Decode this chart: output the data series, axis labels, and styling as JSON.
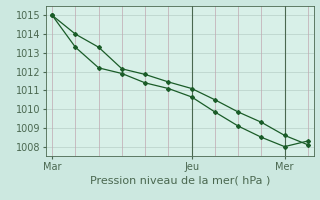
{
  "title": "Pression niveau de la mer( hPa )",
  "bg_color": "#cce8e0",
  "plot_bg_color": "#d8f0e8",
  "grid_color_v": "#c0a8b0",
  "grid_color_h": "#b8d0c8",
  "line_color": "#1a5c28",
  "x_ticks_labels": [
    "Mar",
    "Jeu",
    "Mer"
  ],
  "x_ticks_pos": [
    0,
    12,
    20
  ],
  "ylim": [
    1007.5,
    1015.5
  ],
  "yticks": [
    1008,
    1009,
    1010,
    1011,
    1012,
    1013,
    1014,
    1015
  ],
  "series1_x": [
    0,
    2,
    4,
    6,
    8,
    10,
    12,
    14,
    16,
    18,
    20,
    22
  ],
  "series1_y": [
    1015.0,
    1013.3,
    1012.2,
    1011.9,
    1011.4,
    1011.1,
    1010.65,
    1009.85,
    1009.1,
    1008.5,
    1008.0,
    1008.3
  ],
  "series2_x": [
    0,
    2,
    4,
    6,
    8,
    10,
    12,
    14,
    16,
    18,
    20,
    22
  ],
  "series2_y": [
    1015.0,
    1014.0,
    1013.3,
    1012.15,
    1011.85,
    1011.45,
    1011.1,
    1010.5,
    1009.85,
    1009.3,
    1008.6,
    1008.1
  ],
  "vline_x": [
    12,
    20
  ],
  "xlim": [
    -0.5,
    22.5
  ],
  "xlabel_fontsize": 8,
  "tick_fontsize": 7,
  "spine_color": "#4a6850",
  "vline_color": "#4a6850",
  "tick_color": "#4a6850"
}
